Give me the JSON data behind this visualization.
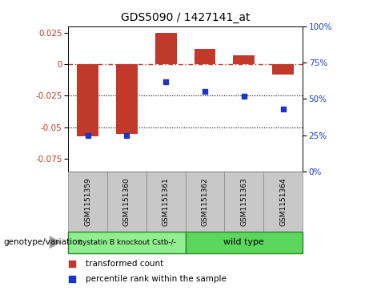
{
  "title": "GDS5090 / 1427141_at",
  "categories": [
    "GSM1151359",
    "GSM1151360",
    "GSM1151361",
    "GSM1151362",
    "GSM1151363",
    "GSM1151364"
  ],
  "bar_values": [
    -0.057,
    -0.055,
    0.025,
    0.012,
    0.007,
    -0.008
  ],
  "percentile_values": [
    25,
    25,
    62,
    55,
    52,
    43
  ],
  "bar_color": "#c0392b",
  "dot_color": "#1a35c8",
  "ylim_left": [
    -0.085,
    0.03
  ],
  "ylim_right": [
    0,
    100
  ],
  "yticks_left": [
    0.025,
    0,
    -0.025,
    -0.05,
    -0.075
  ],
  "yticks_right": [
    100,
    75,
    50,
    25,
    0
  ],
  "group1_label": "cystatin B knockout Cstb-/-",
  "group2_label": "wild type",
  "group1_color": "#90ee90",
  "group2_color": "#5cd65c",
  "group1_indices": [
    0,
    1,
    2
  ],
  "group2_indices": [
    3,
    4,
    5
  ],
  "bottom_label": "genotype/variation",
  "legend1": "transformed count",
  "legend2": "percentile rank within the sample",
  "bg_color": "#c8c8c8",
  "plot_bg": "#ffffff",
  "arrow_color": "#a0a0a0"
}
